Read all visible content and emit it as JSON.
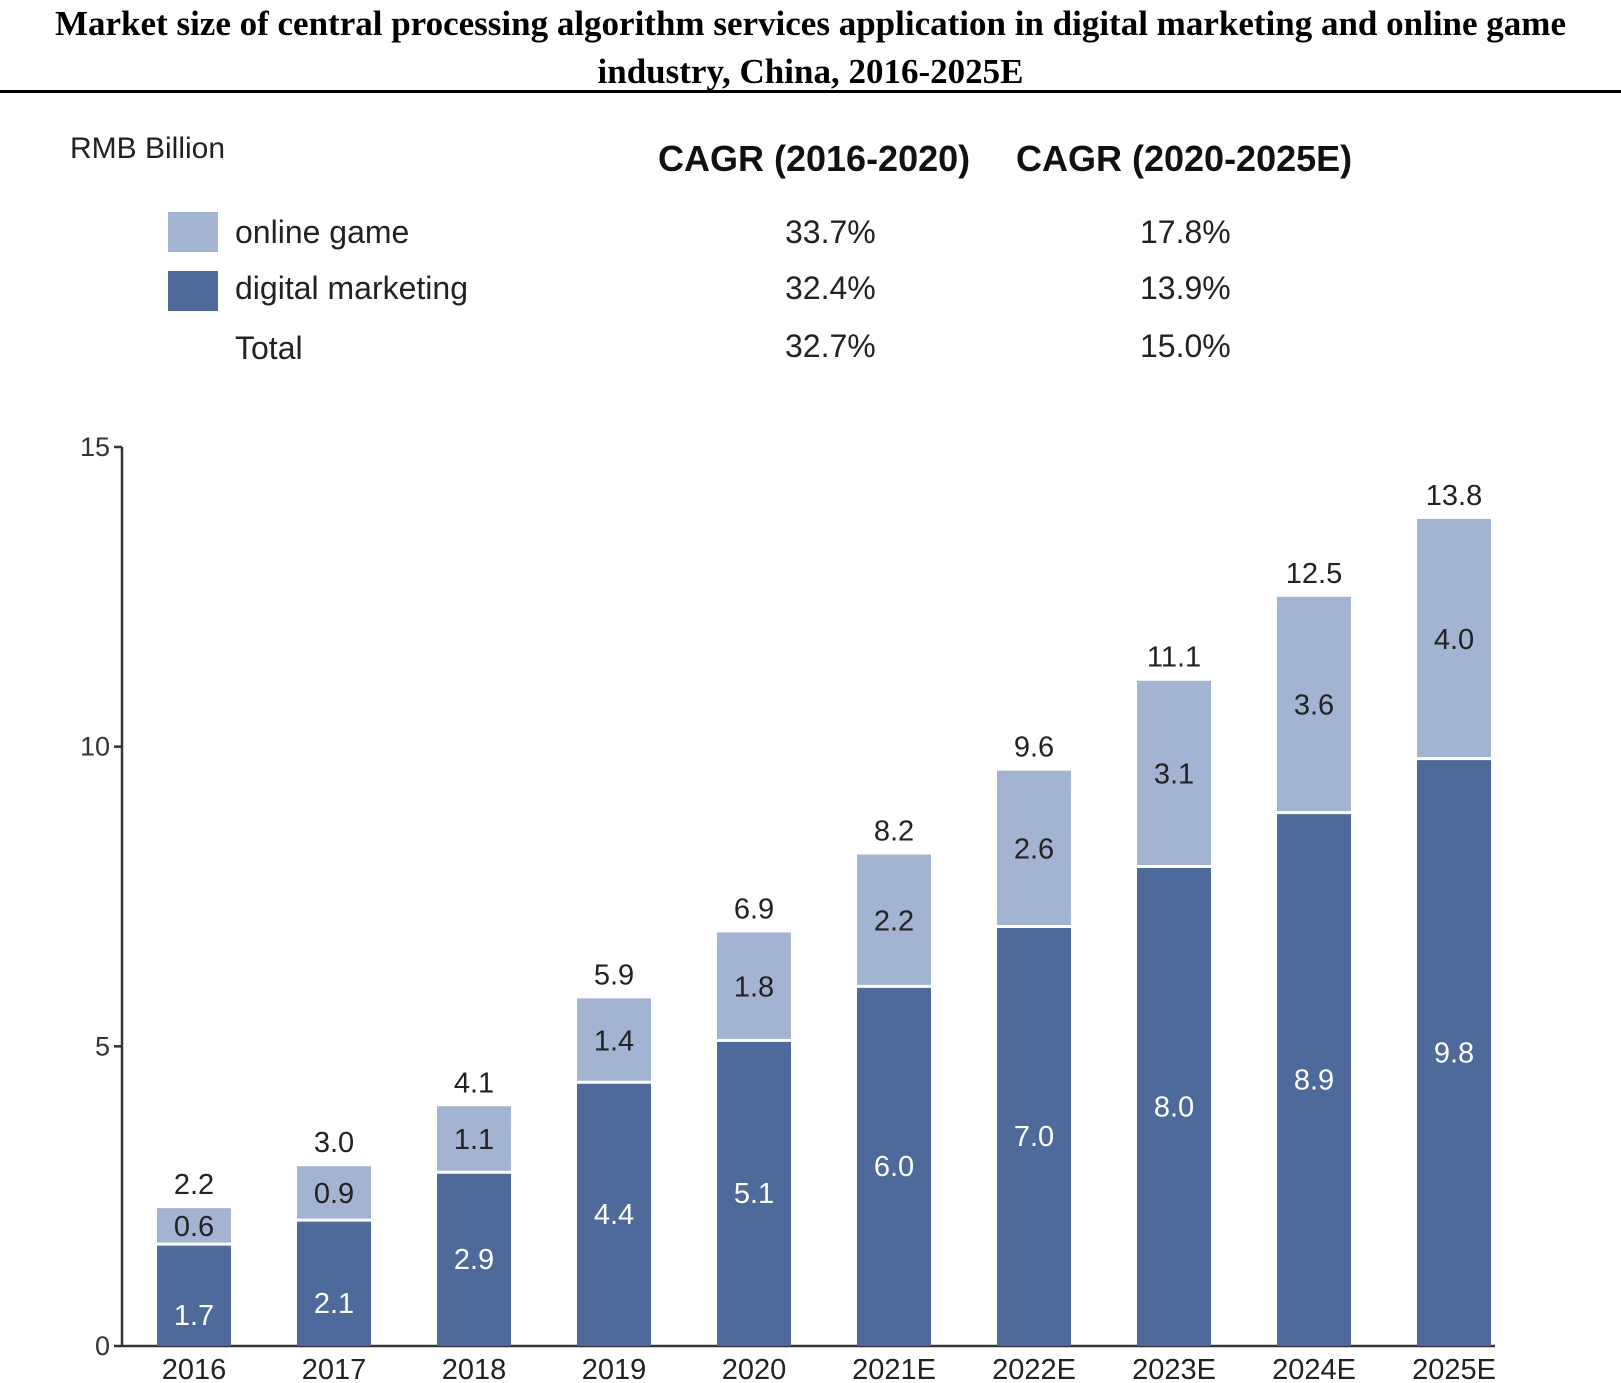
{
  "title": "Market size of central processing algorithm services application in digital marketing and online game industry, China, 2016-2025E",
  "unit_label": "RMB Billion",
  "cagr_header": {
    "col1": "CAGR (2016-2020)",
    "col2": "CAGR (2020-2025E)"
  },
  "legend": [
    {
      "label": "online game",
      "color": "#a3b3d2",
      "cagr1": "33.7%",
      "cagr2": "17.8%"
    },
    {
      "label": "digital marketing",
      "color": "#4d6a9b",
      "cagr1": "32.4%",
      "cagr2": "13.9%"
    },
    {
      "label": "Total",
      "color": "",
      "cagr1": "32.7%",
      "cagr2": "15.0%"
    }
  ],
  "chart_data": {
    "type": "bar",
    "stacked": true,
    "categories": [
      "2016",
      "2017",
      "2018",
      "2019",
      "2020",
      "2021E",
      "2022E",
      "2023E",
      "2024E",
      "2025E"
    ],
    "series": [
      {
        "name": "digital marketing",
        "color": "#4d6a9b",
        "values": [
          1.7,
          2.1,
          2.9,
          4.4,
          5.1,
          6.0,
          7.0,
          8.0,
          8.9,
          9.8
        ]
      },
      {
        "name": "online game",
        "color": "#a3b3d2",
        "values": [
          0.6,
          0.9,
          1.1,
          1.4,
          1.8,
          2.2,
          2.6,
          3.1,
          3.6,
          4.0
        ]
      }
    ],
    "totals": [
      "2.2",
      "3.0",
      "4.1",
      "5.9",
      "6.9",
      "8.2",
      "9.6",
      "11.1",
      "12.5",
      "13.8"
    ],
    "ylim": [
      0,
      15
    ],
    "yticks": [
      "0",
      "5",
      "10",
      "15"
    ],
    "grid": false
  }
}
